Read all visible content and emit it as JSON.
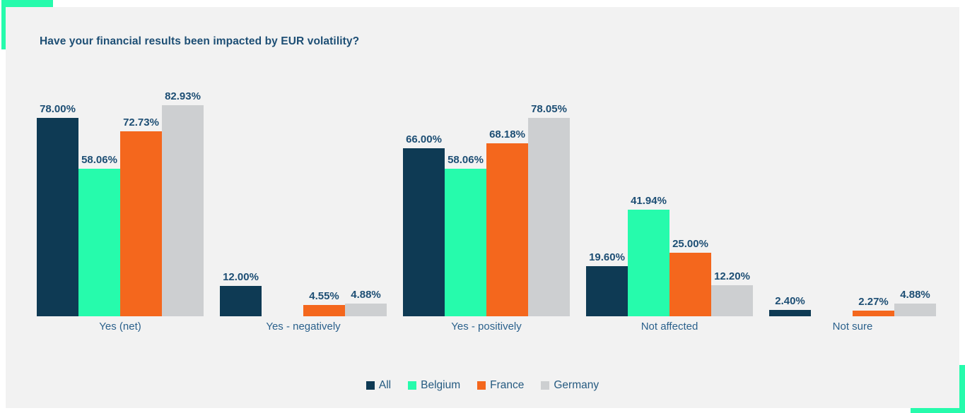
{
  "page": {
    "background_color": "#ffffff",
    "card_color": "#f2f2f2",
    "accent_green": "#26fbac",
    "title_color": "#1d4e74",
    "value_label_color": "#1d4e74",
    "category_label_color": "#2b618c",
    "legend_text_color": "#255a80"
  },
  "chart_data": {
    "type": "bar",
    "title": "Have your financial results been impacted by EUR volatility?",
    "categories": [
      "Yes (net)",
      "Yes - negatively",
      "Yes - positively",
      "Not affected",
      "Not sure"
    ],
    "series": [
      {
        "name": "All",
        "color": "#0e3a54",
        "values": [
          78.0,
          12.0,
          66.0,
          19.6,
          2.4
        ],
        "labels": [
          "78.00%",
          "12.00%",
          "66.00%",
          "19.60%",
          "2.40%"
        ]
      },
      {
        "name": "Belgium",
        "color": "#26fbac",
        "values": [
          58.06,
          null,
          58.06,
          41.94,
          null
        ],
        "labels": [
          "58.06%",
          null,
          "58.06%",
          "41.94%",
          null
        ]
      },
      {
        "name": "France",
        "color": "#f4671d",
        "values": [
          72.73,
          4.55,
          68.18,
          25.0,
          2.27
        ],
        "labels": [
          "72.73%",
          "4.55%",
          "68.18%",
          "25.00%",
          "2.27%"
        ]
      },
      {
        "name": "Germany",
        "color": "#cdcfd1",
        "values": [
          82.93,
          4.88,
          78.05,
          12.2,
          4.88
        ],
        "labels": [
          "82.93%",
          "4.88%",
          "78.05%",
          "12.20%",
          "4.88%"
        ]
      }
    ],
    "xlabel": "",
    "ylabel": "",
    "ylim": [
      0,
      100
    ],
    "grid": false,
    "legend_position": "bottom",
    "value_label_format": "0.00%"
  }
}
